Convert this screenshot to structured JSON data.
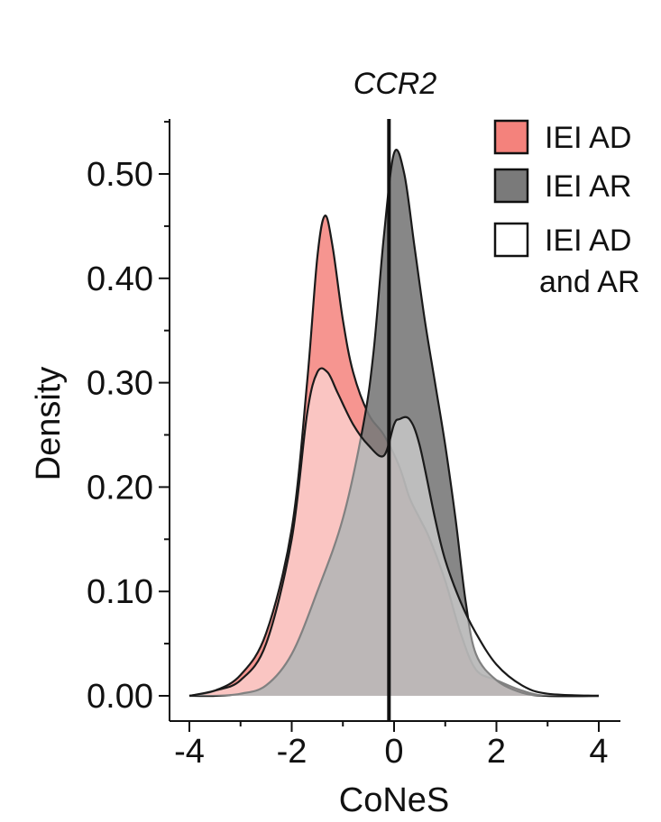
{
  "chart_data": {
    "type": "area",
    "title": "CCR2",
    "xlabel": "CoNeS",
    "ylabel": "Density",
    "xlim": [
      -4,
      4
    ],
    "ylim": [
      0,
      0.55
    ],
    "x_ticks": [
      "-4",
      "-2",
      "0",
      "2",
      "4"
    ],
    "y_ticks": [
      "0.00",
      "0.10",
      "0.20",
      "0.30",
      "0.40",
      "0.50"
    ],
    "reference_line_x": -0.1,
    "legend": {
      "position": "top-right"
    },
    "series": [
      {
        "name": "IEI AD",
        "fill": "#f4827c",
        "stroke": "#1a1a1a",
        "points": [
          [
            -4,
            0.0
          ],
          [
            -3.5,
            0.005
          ],
          [
            -3.0,
            0.02
          ],
          [
            -2.5,
            0.06
          ],
          [
            -2.0,
            0.16
          ],
          [
            -1.7,
            0.3
          ],
          [
            -1.5,
            0.42
          ],
          [
            -1.35,
            0.46
          ],
          [
            -1.2,
            0.43
          ],
          [
            -1.0,
            0.36
          ],
          [
            -0.8,
            0.31
          ],
          [
            -0.5,
            0.27
          ],
          [
            -0.2,
            0.25
          ],
          [
            0.1,
            0.22
          ],
          [
            0.3,
            0.19
          ],
          [
            0.5,
            0.17
          ],
          [
            0.7,
            0.15
          ],
          [
            1.0,
            0.11
          ],
          [
            1.3,
            0.06
          ],
          [
            1.6,
            0.025
          ],
          [
            2.0,
            0.015
          ],
          [
            2.5,
            0.005
          ],
          [
            3.0,
            0.0
          ],
          [
            4.0,
            0.0
          ]
        ]
      },
      {
        "name": "IEI AR",
        "fill": "#7a7a7a",
        "stroke": "#1a1a1a",
        "points": [
          [
            -4,
            0.0
          ],
          [
            -3.5,
            0.0
          ],
          [
            -3.0,
            0.002
          ],
          [
            -2.5,
            0.01
          ],
          [
            -2.0,
            0.04
          ],
          [
            -1.5,
            0.1
          ],
          [
            -1.0,
            0.17
          ],
          [
            -0.6,
            0.26
          ],
          [
            -0.4,
            0.33
          ],
          [
            -0.2,
            0.44
          ],
          [
            0.0,
            0.52
          ],
          [
            0.2,
            0.5
          ],
          [
            0.4,
            0.43
          ],
          [
            0.6,
            0.36
          ],
          [
            0.8,
            0.3
          ],
          [
            1.0,
            0.24
          ],
          [
            1.2,
            0.17
          ],
          [
            1.4,
            0.09
          ],
          [
            1.6,
            0.04
          ],
          [
            2.0,
            0.015
          ],
          [
            2.5,
            0.003
          ],
          [
            3.0,
            0.0
          ],
          [
            4.0,
            0.0
          ]
        ]
      },
      {
        "name": "IEI AD\nand AR",
        "fill": "#ffffff",
        "stroke": "#1a1a1a",
        "points": [
          [
            -4,
            0.0
          ],
          [
            -3.5,
            0.005
          ],
          [
            -3.0,
            0.015
          ],
          [
            -2.5,
            0.05
          ],
          [
            -2.0,
            0.15
          ],
          [
            -1.7,
            0.27
          ],
          [
            -1.5,
            0.31
          ],
          [
            -1.3,
            0.31
          ],
          [
            -1.1,
            0.29
          ],
          [
            -0.8,
            0.26
          ],
          [
            -0.5,
            0.24
          ],
          [
            -0.2,
            0.23
          ],
          [
            0.0,
            0.26
          ],
          [
            0.1,
            0.265
          ],
          [
            0.3,
            0.265
          ],
          [
            0.5,
            0.24
          ],
          [
            0.8,
            0.17
          ],
          [
            1.0,
            0.13
          ],
          [
            1.3,
            0.09
          ],
          [
            1.6,
            0.06
          ],
          [
            2.0,
            0.03
          ],
          [
            2.5,
            0.01
          ],
          [
            3.0,
            0.002
          ],
          [
            4.0,
            0.0
          ]
        ]
      }
    ]
  }
}
